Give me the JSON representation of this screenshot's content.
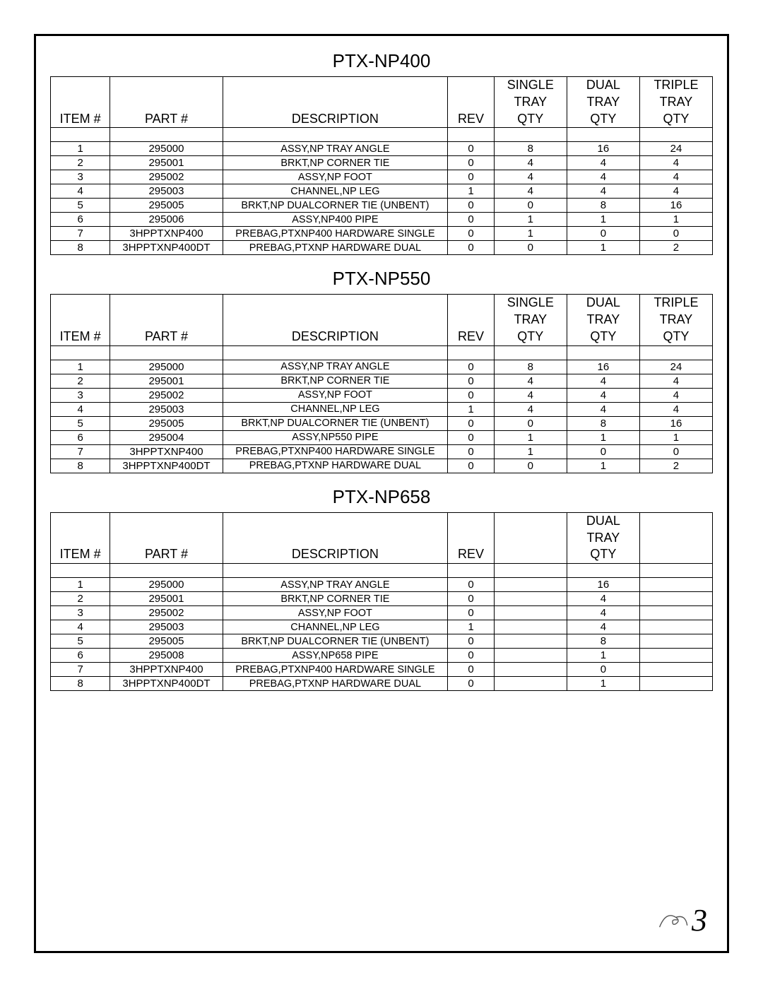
{
  "page_number": "3",
  "sections": [
    {
      "title": "PTX-NP400",
      "headers": {
        "item": "ITEM #",
        "part": "PART #",
        "desc": "DESCRIPTION",
        "rev": "REV",
        "qty_cols": [
          [
            "SINGLE",
            "TRAY",
            "QTY"
          ],
          [
            "DUAL",
            "TRAY",
            "QTY"
          ],
          [
            "TRIPLE",
            "TRAY",
            "QTY"
          ]
        ]
      },
      "rows": [
        {
          "item": "1",
          "part": "295000",
          "desc": "ASSY,NP TRAY ANGLE",
          "rev": "0",
          "q": [
            "8",
            "16",
            "24"
          ]
        },
        {
          "item": "2",
          "part": "295001",
          "desc": "BRKT,NP CORNER TIE",
          "rev": "0",
          "q": [
            "4",
            "4",
            "4"
          ]
        },
        {
          "item": "3",
          "part": "295002",
          "desc": "ASSY,NP FOOT",
          "rev": "0",
          "q": [
            "4",
            "4",
            "4"
          ]
        },
        {
          "item": "4",
          "part": "295003",
          "desc": "CHANNEL,NP LEG",
          "rev": "1",
          "q": [
            "4",
            "4",
            "4"
          ]
        },
        {
          "item": "5",
          "part": "295005",
          "desc": "BRKT,NP DUALCORNER TIE (UNBENT)",
          "rev": "0",
          "q": [
            "0",
            "8",
            "16"
          ]
        },
        {
          "item": "6",
          "part": "295006",
          "desc": "ASSY,NP400 PIPE",
          "rev": "0",
          "q": [
            "1",
            "1",
            "1"
          ]
        },
        {
          "item": "7",
          "part": "3HPPTXNP400",
          "desc": "PREBAG,PTXNP400 HARDWARE SINGLE",
          "rev": "0",
          "q": [
            "1",
            "0",
            "0"
          ]
        },
        {
          "item": "8",
          "part": "3HPPTXNP400DT",
          "desc": "PREBAG,PTXNP HARDWARE DUAL",
          "rev": "0",
          "q": [
            "0",
            "1",
            "2"
          ]
        }
      ]
    },
    {
      "title": "PTX-NP550",
      "headers": {
        "item": "ITEM #",
        "part": "PART #",
        "desc": "DESCRIPTION",
        "rev": "REV",
        "qty_cols": [
          [
            "SINGLE",
            "TRAY",
            "QTY"
          ],
          [
            "DUAL",
            "TRAY",
            "QTY"
          ],
          [
            "TRIPLE",
            "TRAY",
            "QTY"
          ]
        ]
      },
      "rows": [
        {
          "item": "1",
          "part": "295000",
          "desc": "ASSY,NP TRAY ANGLE",
          "rev": "0",
          "q": [
            "8",
            "16",
            "24"
          ]
        },
        {
          "item": "2",
          "part": "295001",
          "desc": "BRKT,NP CORNER TIE",
          "rev": "0",
          "q": [
            "4",
            "4",
            "4"
          ]
        },
        {
          "item": "3",
          "part": "295002",
          "desc": "ASSY,NP FOOT",
          "rev": "0",
          "q": [
            "4",
            "4",
            "4"
          ]
        },
        {
          "item": "4",
          "part": "295003",
          "desc": "CHANNEL,NP LEG",
          "rev": "1",
          "q": [
            "4",
            "4",
            "4"
          ]
        },
        {
          "item": "5",
          "part": "295005",
          "desc": "BRKT,NP DUALCORNER TIE (UNBENT)",
          "rev": "0",
          "q": [
            "0",
            "8",
            "16"
          ]
        },
        {
          "item": "6",
          "part": "295004",
          "desc": "ASSY,NP550 PIPE",
          "rev": "0",
          "q": [
            "1",
            "1",
            "1"
          ]
        },
        {
          "item": "7",
          "part": "3HPPTXNP400",
          "desc": "PREBAG,PTXNP400 HARDWARE SINGLE",
          "rev": "0",
          "q": [
            "1",
            "0",
            "0"
          ]
        },
        {
          "item": "8",
          "part": "3HPPTXNP400DT",
          "desc": "PREBAG,PTXNP HARDWARE DUAL",
          "rev": "0",
          "q": [
            "0",
            "1",
            "2"
          ]
        }
      ]
    },
    {
      "title": "PTX-NP658",
      "headers": {
        "item": "ITEM #",
        "part": "PART #",
        "desc": "DESCRIPTION",
        "rev": "REV",
        "qty_cols": [
          [
            "",
            "",
            ""
          ],
          [
            "DUAL",
            "TRAY",
            "QTY"
          ],
          [
            "",
            "",
            ""
          ]
        ]
      },
      "rows": [
        {
          "item": "1",
          "part": "295000",
          "desc": "ASSY,NP TRAY ANGLE",
          "rev": "0",
          "q": [
            "",
            "16",
            ""
          ]
        },
        {
          "item": "2",
          "part": "295001",
          "desc": "BRKT,NP CORNER TIE",
          "rev": "0",
          "q": [
            "",
            "4",
            ""
          ]
        },
        {
          "item": "3",
          "part": "295002",
          "desc": "ASSY,NP FOOT",
          "rev": "0",
          "q": [
            "",
            "4",
            ""
          ]
        },
        {
          "item": "4",
          "part": "295003",
          "desc": "CHANNEL,NP LEG",
          "rev": "1",
          "q": [
            "",
            "4",
            ""
          ]
        },
        {
          "item": "5",
          "part": "295005",
          "desc": "BRKT,NP DUALCORNER TIE (UNBENT)",
          "rev": "0",
          "q": [
            "",
            "8",
            ""
          ]
        },
        {
          "item": "6",
          "part": "295008",
          "desc": "ASSY,NP658 PIPE",
          "rev": "0",
          "q": [
            "",
            "1",
            ""
          ]
        },
        {
          "item": "7",
          "part": "3HPPTXNP400",
          "desc": "PREBAG,PTXNP400 HARDWARE SINGLE",
          "rev": "0",
          "q": [
            "",
            "0",
            ""
          ]
        },
        {
          "item": "8",
          "part": "3HPPTXNP400DT",
          "desc": "PREBAG,PTXNP HARDWARE DUAL",
          "rev": "0",
          "q": [
            "",
            "1",
            ""
          ]
        }
      ]
    }
  ]
}
